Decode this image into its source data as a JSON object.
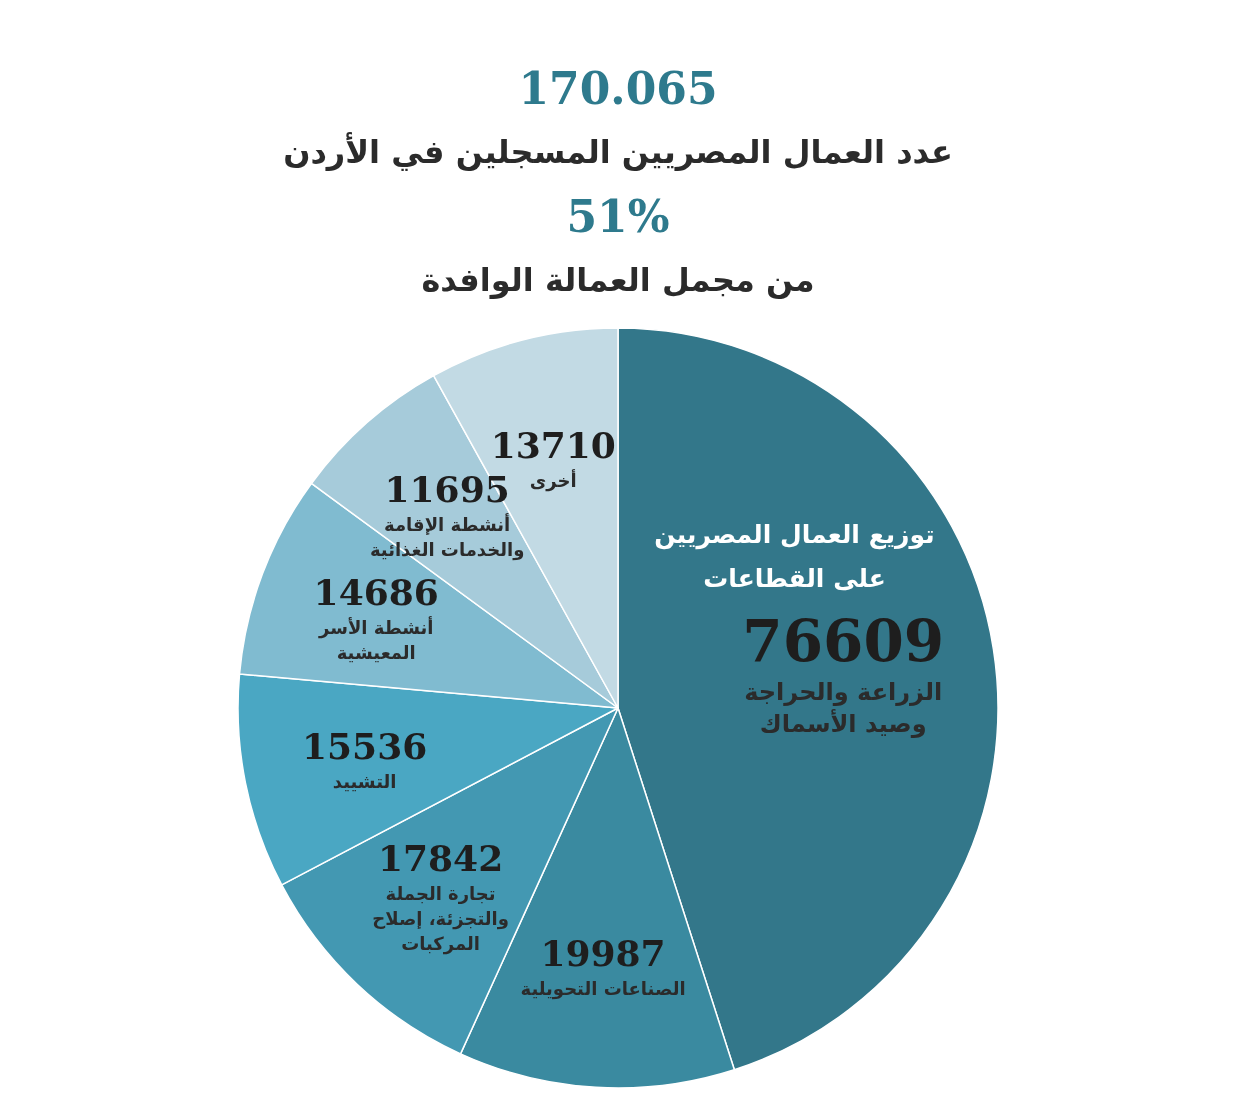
{
  "chart_data": {
    "type": "pie",
    "title": "توزيع العمال المصريين على القطاعات",
    "annotations": [
      "170.065",
      "عدد العمال المصريين المسجلين في الأردن",
      "51%",
      "من مجمل العمالة الوافدة"
    ],
    "categories": [
      "الزراعة والحراجة وصيد الأسماك",
      "الصناعات التحويلية",
      "تجارة الجملة والتجزئة، إصلاح المركبات",
      "التشييد",
      "أنشطة الأسر المعيشية",
      "أنشطة الإقامة والخدمات الغذائية",
      "أخرى"
    ],
    "values": [
      76609,
      19987,
      17842,
      15536,
      14686,
      11695,
      13710
    ],
    "colors": [
      "#33778a",
      "#3a8aa0",
      "#4398b2",
      "#4aa7c3",
      "#80bbd0",
      "#a6cbda",
      "#c2dae4"
    ],
    "data_labels": true
  }
}
